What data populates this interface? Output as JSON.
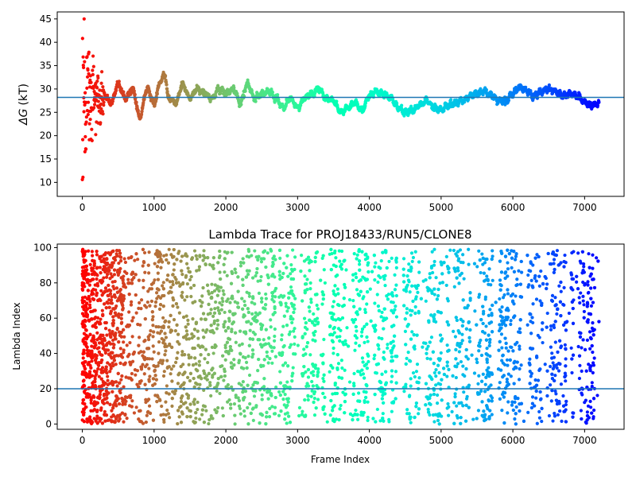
{
  "colors": {
    "hline": "#1f77b4",
    "frame": "#000000"
  },
  "chart_data": [
    {
      "type": "scatter",
      "title": "",
      "xlabel": "",
      "ylabel": "ΔG (kT)",
      "ylabel_symbol": "ΔG",
      "ylabel_unit": "(kT)",
      "xlim": [
        -350,
        7550
      ],
      "ylim": [
        7,
        46.5
      ],
      "xticks": [
        0,
        1000,
        2000,
        3000,
        4000,
        5000,
        6000,
        7000
      ],
      "yticks": [
        10,
        15,
        20,
        25,
        30,
        35,
        40,
        45
      ],
      "hline": 28.2,
      "colormap": "rainbow_r",
      "x_max": 7200,
      "trace_keypoints": [
        [
          300,
          29
        ],
        [
          400,
          27
        ],
        [
          500,
          31
        ],
        [
          600,
          28
        ],
        [
          700,
          30
        ],
        [
          800,
          24
        ],
        [
          900,
          30
        ],
        [
          1000,
          27
        ],
        [
          1100,
          32
        ],
        [
          1150,
          33
        ],
        [
          1200,
          28
        ],
        [
          1300,
          27
        ],
        [
          1400,
          31
        ],
        [
          1500,
          28
        ],
        [
          1600,
          30
        ],
        [
          1700,
          29
        ],
        [
          1800,
          28
        ],
        [
          1900,
          30
        ],
        [
          2000,
          29
        ],
        [
          2100,
          30
        ],
        [
          2200,
          27
        ],
        [
          2300,
          31
        ],
        [
          2400,
          28
        ],
        [
          2500,
          29
        ],
        [
          2600,
          29.5
        ],
        [
          2700,
          28
        ],
        [
          2800,
          26
        ],
        [
          2900,
          28
        ],
        [
          3000,
          26
        ],
        [
          3100,
          28
        ],
        [
          3200,
          29
        ],
        [
          3300,
          30
        ],
        [
          3400,
          28
        ],
        [
          3500,
          27.5
        ],
        [
          3600,
          25
        ],
        [
          3700,
          26
        ],
        [
          3800,
          27
        ],
        [
          3900,
          25.5
        ],
        [
          4000,
          28.5
        ],
        [
          4100,
          29.5
        ],
        [
          4200,
          29
        ],
        [
          4300,
          28
        ],
        [
          4400,
          26
        ],
        [
          4500,
          25
        ],
        [
          4600,
          25.5
        ],
        [
          4700,
          26.5
        ],
        [
          4800,
          27.5
        ],
        [
          4900,
          26
        ],
        [
          5000,
          25.5
        ],
        [
          5100,
          26.5
        ],
        [
          5200,
          27
        ],
        [
          5300,
          27.5
        ],
        [
          5400,
          28.5
        ],
        [
          5500,
          29
        ],
        [
          5600,
          29.5
        ],
        [
          5700,
          28.5
        ],
        [
          5800,
          27.5
        ],
        [
          5900,
          27.5
        ],
        [
          6000,
          29
        ],
        [
          6100,
          30.5
        ],
        [
          6200,
          29.5
        ],
        [
          6300,
          28.5
        ],
        [
          6400,
          29.5
        ],
        [
          6500,
          30
        ],
        [
          6600,
          29.5
        ],
        [
          6700,
          28.5
        ],
        [
          6800,
          29
        ],
        [
          6900,
          28.5
        ],
        [
          7000,
          27
        ],
        [
          7100,
          26.5
        ],
        [
          7200,
          27
        ]
      ]
    },
    {
      "type": "scatter",
      "title": "Lambda Trace for PROJ18433/RUN5/CLONE8",
      "xlabel": "Frame Index",
      "ylabel": "Lambda Index",
      "xlim": [
        -350,
        7550
      ],
      "ylim": [
        -3,
        102
      ],
      "xticks": [
        0,
        1000,
        2000,
        3000,
        4000,
        5000,
        6000,
        7000
      ],
      "yticks": [
        0,
        20,
        40,
        60,
        80,
        100
      ],
      "hline": 20,
      "colormap": "rainbow_r",
      "x_max": 7200,
      "lambda_range": [
        0,
        99
      ]
    }
  ]
}
